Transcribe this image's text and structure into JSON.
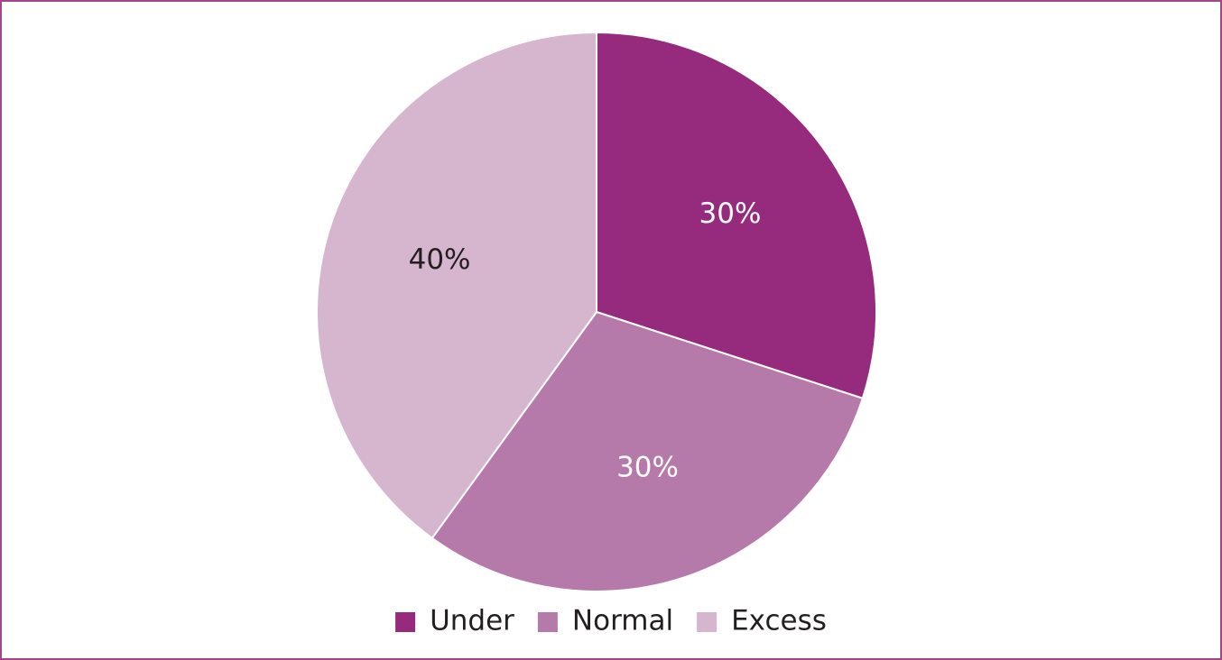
{
  "chart_data": {
    "type": "pie",
    "categories": [
      "Under",
      "Normal",
      "Excess"
    ],
    "values": [
      30,
      30,
      40
    ],
    "value_labels": [
      "30%",
      "30%",
      "40%"
    ],
    "colors": [
      "#962a7c",
      "#b57aaa",
      "#d6b5cf"
    ],
    "legend": "bottom"
  }
}
